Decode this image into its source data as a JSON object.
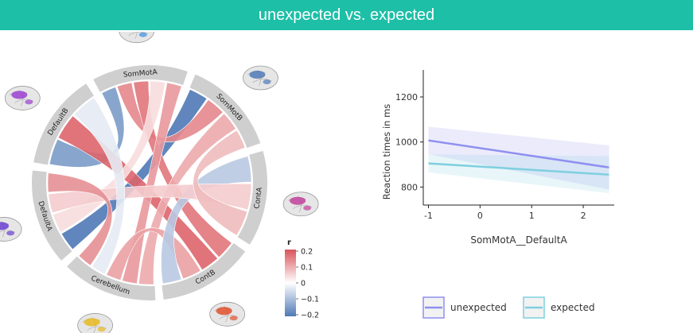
{
  "header": {
    "title": "unexpected vs. expected"
  },
  "colors": {
    "header_bg": "#1dbfa7",
    "positive": "#d9545a",
    "negative": "#4f79b6",
    "unexpected": "#8f8ff0",
    "expected": "#7ecfe0"
  },
  "chart_data": [
    {
      "type": "chord",
      "segments": [
        "DefaultB",
        "SomMotA",
        "SomMotB",
        "ContA",
        "ContB",
        "Cerebellum",
        "DefaultA"
      ],
      "legend": {
        "title": "r",
        "ticks": [
          "0.2",
          "0.1",
          "0",
          "−0.1",
          "−0.2"
        ],
        "range": [
          -0.2,
          0.2
        ]
      },
      "links": [
        {
          "from": "DefaultA",
          "to": "SomMotB",
          "r": -0.2
        },
        {
          "from": "DefaultB",
          "to": "SomMotA",
          "r": -0.15
        },
        {
          "from": "SomMotA",
          "to": "SomMotB",
          "r": 0.14
        },
        {
          "from": "SomMotA",
          "to": "ContB",
          "r": 0.16
        },
        {
          "from": "DefaultB",
          "to": "ContB",
          "r": 0.18
        },
        {
          "from": "DefaultA",
          "to": "SomMotA",
          "r": 0.04
        },
        {
          "from": "Cerebellum",
          "to": "SomMotB",
          "r": 0.1
        },
        {
          "from": "Cerebellum",
          "to": "SomMotA",
          "r": 0.12
        },
        {
          "from": "Cerebellum",
          "to": "ContB",
          "r": 0.11
        },
        {
          "from": "ContA",
          "to": "ContB",
          "r": -0.08
        },
        {
          "from": "DefaultA",
          "to": "ContA",
          "r": 0.06
        },
        {
          "from": "DefaultB",
          "to": "Cerebellum",
          "r": -0.03
        },
        {
          "from": "SomMotB",
          "to": "ContA",
          "r": 0.08
        },
        {
          "from": "DefaultA",
          "to": "Cerebellum",
          "r": 0.13
        }
      ]
    },
    {
      "type": "line",
      "xlabel": "SomMotA__DefaultA",
      "ylabel": "Reaction times in ms",
      "xlim": [
        -1.1,
        2.6
      ],
      "ylim": [
        720,
        1320
      ],
      "xticks": [
        -1,
        0,
        1,
        2
      ],
      "yticks": [
        800,
        1000,
        1200
      ],
      "series": [
        {
          "name": "unexpected",
          "x": [
            -1,
            2.5
          ],
          "y": [
            1007,
            887
          ],
          "ci_upper": [
            1068,
            985
          ],
          "ci_lower": [
            946,
            789
          ]
        },
        {
          "name": "expected",
          "x": [
            -1,
            2.5
          ],
          "y": [
            905,
            855
          ],
          "ci_upper": [
            945,
            937
          ],
          "ci_lower": [
            865,
            773
          ]
        }
      ]
    }
  ]
}
